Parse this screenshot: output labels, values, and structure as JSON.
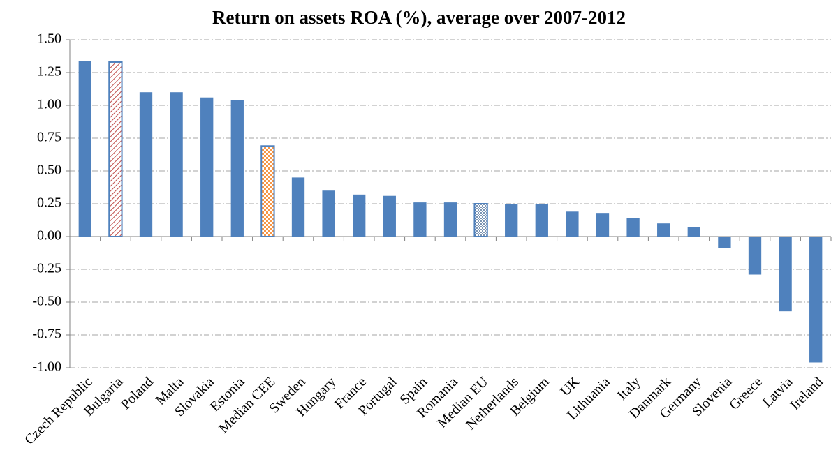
{
  "chart_data": {
    "type": "bar",
    "title": "Return on assets ROA (%), average over 2007-2012",
    "categories": [
      "Czech Republic",
      "Bulgaria",
      "Poland",
      "Malta",
      "Slovakia",
      "Estonia",
      "Median CEE",
      "Sweden",
      "Hungary",
      "France",
      "Portugal",
      "Spain",
      "Romania",
      "Median EU",
      "Netherlands",
      "Belgium",
      "UK",
      "Lithuania",
      "Italy",
      "Danmark",
      "Germany",
      "Slovenia",
      "Greece",
      "Latvia",
      "Ireland"
    ],
    "values": [
      1.34,
      1.33,
      1.1,
      1.1,
      1.06,
      1.04,
      0.69,
      0.45,
      0.35,
      0.32,
      0.31,
      0.26,
      0.26,
      0.25,
      0.25,
      0.25,
      0.19,
      0.18,
      0.14,
      0.1,
      0.07,
      -0.09,
      -0.29,
      -0.57,
      -0.96
    ],
    "color": "#4f81bd",
    "patterns": [
      "solid",
      "hatch",
      "solid",
      "solid",
      "solid",
      "solid",
      "checker",
      "solid",
      "solid",
      "solid",
      "solid",
      "solid",
      "solid",
      "dots",
      "solid",
      "solid",
      "solid",
      "solid",
      "solid",
      "solid",
      "solid",
      "solid",
      "solid",
      "solid",
      "solid"
    ],
    "ylim": [
      -1.0,
      1.5
    ],
    "yticks": [
      {
        "value": -1.0,
        "label": "-1.00"
      },
      {
        "value": -0.75,
        "label": "-0.75"
      },
      {
        "value": -0.5,
        "label": "-0.50"
      },
      {
        "value": -0.25,
        "label": "-0.25"
      },
      {
        "value": 0,
        "label": "0.00"
      },
      {
        "value": 0.25,
        "label": "0.25"
      },
      {
        "value": 0.5,
        "label": "0.50"
      },
      {
        "value": 0.75,
        "label": "0.75"
      },
      {
        "value": 1.0,
        "label": "1.00"
      },
      {
        "value": 1.25,
        "label": "1.25"
      },
      {
        "value": 1.5,
        "label": "1.50"
      }
    ],
    "grid": true
  }
}
